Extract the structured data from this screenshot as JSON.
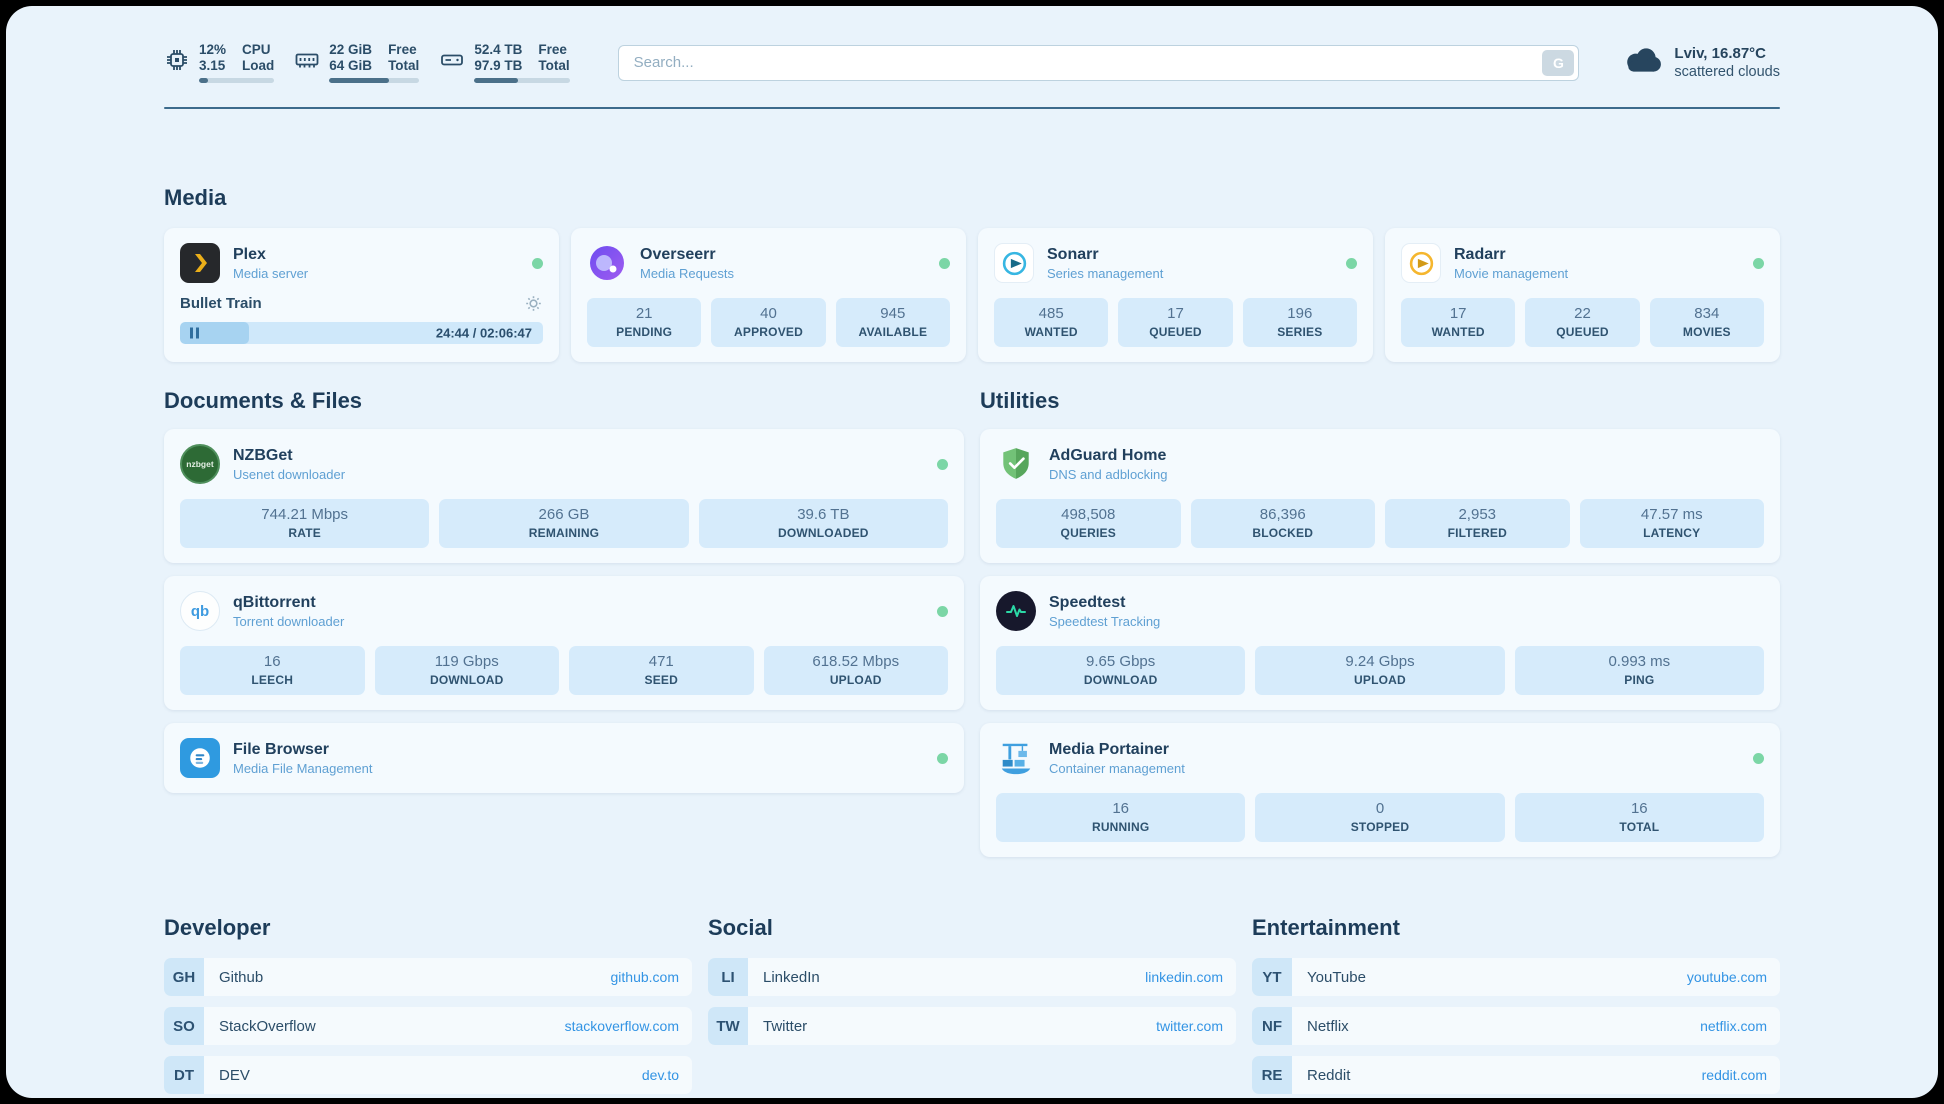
{
  "topbar": {
    "metrics": [
      {
        "icon": "cpu-icon",
        "value1": "12%",
        "label1": "CPU",
        "value2": "3.15",
        "label2": "Load",
        "progress_pct": 12
      },
      {
        "icon": "ram-icon",
        "value1": "22 GiB",
        "label1": "Free",
        "value2": "64 GiB",
        "label2": "Total",
        "progress_pct": 66
      },
      {
        "icon": "disk-icon",
        "value1": "52.4 TB",
        "label1": "Free",
        "value2": "97.9 TB",
        "label2": "Total",
        "progress_pct": 46
      }
    ],
    "search": {
      "placeholder": "Search...",
      "button_label": "G"
    },
    "weather": {
      "icon": "cloud-icon",
      "location": "Lviv, 16.87°C",
      "condition": "scattered clouds"
    }
  },
  "sections": {
    "media": "Media",
    "documents": "Documents & Files",
    "utilities": "Utilities"
  },
  "apps": {
    "plex": {
      "icon": "plex-icon",
      "name": "Plex",
      "subtitle": "Media server",
      "status": "online",
      "now_playing": {
        "title": "Bullet Train",
        "time": "24:44 / 02:06:47",
        "progress_pct": 19
      }
    },
    "overseerr": {
      "icon": "overseerr-icon",
      "name": "Overseerr",
      "subtitle": "Media Requests",
      "status": "online",
      "stats": [
        {
          "value": "21",
          "label": "PENDING"
        },
        {
          "value": "40",
          "label": "APPROVED"
        },
        {
          "value": "945",
          "label": "AVAILABLE"
        }
      ]
    },
    "sonarr": {
      "icon": "sonarr-icon",
      "name": "Sonarr",
      "subtitle": "Series management",
      "status": "online",
      "stats": [
        {
          "value": "485",
          "label": "WANTED"
        },
        {
          "value": "17",
          "label": "QUEUED"
        },
        {
          "value": "196",
          "label": "SERIES"
        }
      ]
    },
    "radarr": {
      "icon": "radarr-icon",
      "name": "Radarr",
      "subtitle": "Movie management",
      "status": "online",
      "stats": [
        {
          "value": "17",
          "label": "WANTED"
        },
        {
          "value": "22",
          "label": "QUEUED"
        },
        {
          "value": "834",
          "label": "MOVIES"
        }
      ]
    },
    "nzbget": {
      "icon": "nzbget-icon",
      "icon_text": "nzbget",
      "name": "NZBGet",
      "subtitle": "Usenet downloader",
      "status": "online",
      "stats": [
        {
          "value": "744.21 Mbps",
          "label": "RATE"
        },
        {
          "value": "266 GB",
          "label": "REMAINING"
        },
        {
          "value": "39.6 TB",
          "label": "DOWNLOADED"
        }
      ]
    },
    "qbittorrent": {
      "icon": "qbittorrent-icon",
      "icon_text": "qb",
      "name": "qBittorrent",
      "subtitle": "Torrent downloader",
      "status": "online",
      "stats": [
        {
          "value": "16",
          "label": "LEECH"
        },
        {
          "value": "119 Gbps",
          "label": "DOWNLOAD"
        },
        {
          "value": "471",
          "label": "SEED"
        },
        {
          "value": "618.52 Mbps",
          "label": "UPLOAD"
        }
      ]
    },
    "filebrowser": {
      "icon": "filebrowser-icon",
      "name": "File Browser",
      "subtitle": "Media File Management",
      "status": "online"
    },
    "adguard": {
      "icon": "adguard-icon",
      "name": "AdGuard Home",
      "subtitle": "DNS and adblocking",
      "stats": [
        {
          "value": "498,508",
          "label": "QUERIES"
        },
        {
          "value": "86,396",
          "label": "BLOCKED"
        },
        {
          "value": "2,953",
          "label": "FILTERED"
        },
        {
          "value": "47.57 ms",
          "label": "LATENCY"
        }
      ]
    },
    "speedtest": {
      "icon": "speedtest-icon",
      "name": "Speedtest",
      "subtitle": "Speedtest Tracking",
      "stats": [
        {
          "value": "9.65 Gbps",
          "label": "DOWNLOAD"
        },
        {
          "value": "9.24 Gbps",
          "label": "UPLOAD"
        },
        {
          "value": "0.993 ms",
          "label": "PING"
        }
      ]
    },
    "portainer": {
      "icon": "portainer-icon",
      "name": "Media Portainer",
      "subtitle": "Container management",
      "status": "online",
      "stats": [
        {
          "value": "16",
          "label": "RUNNING"
        },
        {
          "value": "0",
          "label": "STOPPED"
        },
        {
          "value": "16",
          "label": "TOTAL"
        }
      ]
    }
  },
  "bookmarks": {
    "developer": {
      "title": "Developer",
      "items": [
        {
          "abbr": "GH",
          "name": "Github",
          "link": "github.com"
        },
        {
          "abbr": "SO",
          "name": "StackOverflow",
          "link": "stackoverflow.com"
        },
        {
          "abbr": "DT",
          "name": "DEV",
          "link": "dev.to"
        }
      ]
    },
    "social": {
      "title": "Social",
      "items": [
        {
          "abbr": "LI",
          "name": "LinkedIn",
          "link": "linkedin.com"
        },
        {
          "abbr": "TW",
          "name": "Twitter",
          "link": "twitter.com"
        }
      ]
    },
    "entertainment": {
      "title": "Entertainment",
      "items": [
        {
          "abbr": "YT",
          "name": "YouTube",
          "link": "youtube.com"
        },
        {
          "abbr": "NF",
          "name": "Netflix",
          "link": "netflix.com"
        },
        {
          "abbr": "RE",
          "name": "Reddit",
          "link": "reddit.com"
        }
      ]
    }
  },
  "colors": {
    "accent": "#3394e4",
    "status_online": "#7bd6a6",
    "tile_bg": "#d6ebfb",
    "page_bg": "#e9f3fb"
  }
}
